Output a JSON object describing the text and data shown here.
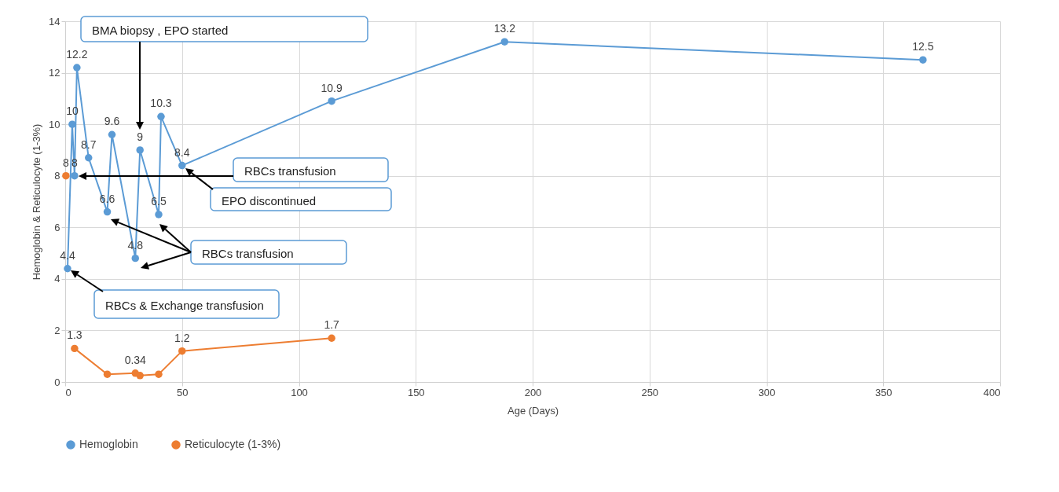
{
  "chart_data": {
    "type": "line",
    "xlabel": "Age (Days)",
    "ylabel": "Hemoglobin & Reticulocyte (1-3%)",
    "xlim": [
      0,
      400
    ],
    "xticks": [
      0,
      50,
      100,
      150,
      200,
      250,
      300,
      350,
      400
    ],
    "ylim": [
      0,
      14
    ],
    "yticks": [
      0,
      2,
      4,
      6,
      8,
      10,
      12,
      14
    ],
    "grid": true,
    "legend": "bottom",
    "marker": "circle",
    "line_style": "solid",
    "series": [
      {
        "name": "Hemoglobin",
        "color": "#5b9bd5",
        "x": [
          1,
          3,
          4,
          5,
          10,
          18,
          20,
          30,
          32,
          40,
          41,
          50,
          114,
          188,
          367
        ],
        "values": [
          4.4,
          10,
          8,
          12.2,
          8.7,
          6.6,
          9.6,
          4.8,
          9,
          6.5,
          10.3,
          8.4,
          10.9,
          13.2,
          12.5
        ],
        "value_labels": [
          "4.4",
          "10",
          "8",
          "12.2",
          "8.7",
          "6.6",
          "9.6",
          "4.8",
          "9",
          "6.5",
          "10.3",
          "8.4",
          "10.9",
          "13.2",
          "12.5"
        ]
      },
      {
        "name": "Reticulocyte (1-3%)",
        "color": "#ed7d31",
        "x": [
          0.3,
          2,
          4,
          18,
          30,
          32,
          40,
          50,
          114
        ],
        "values": [
          8,
          null,
          1.3,
          0.3,
          0.34,
          0.25,
          0.3,
          1.2,
          1.7
        ],
        "value_labels": [
          "8",
          null,
          "1.3",
          null,
          "0.34",
          null,
          null,
          "1.2",
          "1.7"
        ]
      }
    ],
    "annotations": [
      "BMA biopsy , EPO started",
      "RBCs transfusion",
      "EPO discontinued",
      "RBCs transfusion",
      "RBCs & Exchange transfusion"
    ]
  }
}
